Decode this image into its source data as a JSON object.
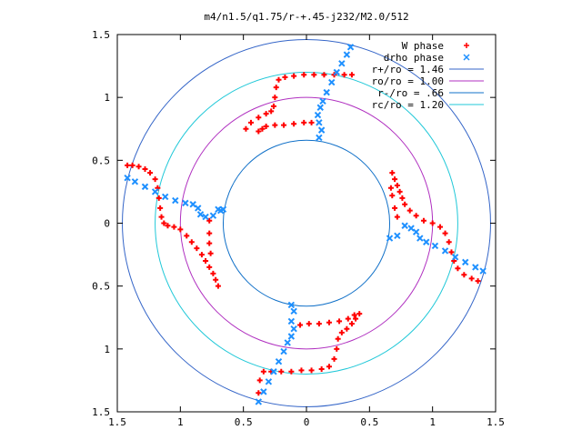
{
  "chart_data": {
    "type": "scatter",
    "title": "m4/n1.5/q1.75/r-+.45-j232/M2.0/512",
    "xlabel": "",
    "ylabel": "",
    "xlim": [
      -1.5,
      1.5
    ],
    "ylim": [
      -1.5,
      1.5
    ],
    "x_tick_values": [
      -1.5,
      -1,
      -0.5,
      0,
      0.5,
      1,
      1.5
    ],
    "x_tick_labels": [
      "1.5",
      "1",
      "0.5",
      "0",
      "0.5",
      "1",
      "1.5"
    ],
    "y_tick_values": [
      1.5,
      1,
      0.5,
      0,
      -0.5,
      -1,
      -1.5
    ],
    "y_tick_labels": [
      "1.5",
      "1",
      "0.5",
      "0",
      "0.5",
      "1",
      "1.5"
    ],
    "grid": false,
    "legend_position": "top-right",
    "circles": [
      {
        "name": "r+/ro = 1.46",
        "radius": 1.46,
        "color": "#3465c8",
        "marker": "line"
      },
      {
        "name": "ro/ro = 1.00",
        "radius": 1.0,
        "color": "#b030c0",
        "marker": "line"
      },
      {
        "name": "r-/ro = .66",
        "radius": 0.66,
        "color": "#1070c8",
        "marker": "line"
      },
      {
        "name": "rc/ro = 1.20",
        "radius": 1.2,
        "color": "#20c8d8",
        "marker": "line"
      }
    ],
    "series": [
      {
        "name": "W phase",
        "color": "#ff0000",
        "marker": "plus",
        "points": [
          [
            -0.7,
            -0.5
          ],
          [
            -0.72,
            -0.45
          ],
          [
            -0.74,
            -0.4
          ],
          [
            -0.77,
            -0.35
          ],
          [
            -0.8,
            -0.3
          ],
          [
            -0.83,
            -0.25
          ],
          [
            -0.87,
            -0.2
          ],
          [
            -0.91,
            -0.15
          ],
          [
            -0.95,
            -0.1
          ],
          [
            -1.0,
            -0.05
          ],
          [
            -1.05,
            -0.03
          ],
          [
            -1.1,
            -0.02
          ],
          [
            -1.13,
            0.0
          ],
          [
            -1.15,
            0.05
          ],
          [
            -1.16,
            0.12
          ],
          [
            -1.17,
            0.2
          ],
          [
            -1.18,
            0.28
          ],
          [
            -1.2,
            0.35
          ],
          [
            -1.24,
            0.4
          ],
          [
            -1.28,
            0.43
          ],
          [
            -1.33,
            0.45
          ],
          [
            -1.38,
            0.46
          ],
          [
            -1.42,
            0.46
          ],
          [
            -0.48,
            0.75
          ],
          [
            -0.44,
            0.8
          ],
          [
            -0.38,
            0.84
          ],
          [
            -0.32,
            0.87
          ],
          [
            -0.28,
            0.89
          ],
          [
            -0.26,
            0.93
          ],
          [
            -0.25,
            1.0
          ],
          [
            -0.24,
            1.08
          ],
          [
            -0.22,
            1.14
          ],
          [
            -0.17,
            1.16
          ],
          [
            -0.1,
            1.17
          ],
          [
            -0.02,
            1.18
          ],
          [
            0.06,
            1.18
          ],
          [
            0.14,
            1.18
          ],
          [
            0.22,
            1.18
          ],
          [
            0.3,
            1.18
          ],
          [
            0.36,
            1.18
          ],
          [
            -0.38,
            0.73
          ],
          [
            -0.35,
            0.75
          ],
          [
            -0.32,
            0.77
          ],
          [
            -0.25,
            0.78
          ],
          [
            -0.18,
            0.78
          ],
          [
            -0.1,
            0.79
          ],
          [
            -0.02,
            0.8
          ],
          [
            0.04,
            0.8
          ],
          [
            0.68,
            0.4
          ],
          [
            0.7,
            0.35
          ],
          [
            0.72,
            0.3
          ],
          [
            0.74,
            0.25
          ],
          [
            0.76,
            0.2
          ],
          [
            0.78,
            0.15
          ],
          [
            0.82,
            0.1
          ],
          [
            0.87,
            0.06
          ],
          [
            0.93,
            0.02
          ],
          [
            1.0,
            0.0
          ],
          [
            1.06,
            -0.03
          ],
          [
            1.1,
            -0.08
          ],
          [
            1.13,
            -0.15
          ],
          [
            1.15,
            -0.23
          ],
          [
            1.17,
            -0.3
          ],
          [
            1.2,
            -0.36
          ],
          [
            1.25,
            -0.41
          ],
          [
            1.31,
            -0.44
          ],
          [
            1.36,
            -0.46
          ],
          [
            0.67,
            0.28
          ],
          [
            0.68,
            0.22
          ],
          [
            0.7,
            0.12
          ],
          [
            0.72,
            0.05
          ],
          [
            -0.77,
            0.02
          ],
          [
            -0.77,
            -0.08
          ],
          [
            -0.77,
            -0.16
          ],
          [
            -0.76,
            -0.24
          ],
          [
            0.38,
            -0.73
          ],
          [
            0.33,
            -0.76
          ],
          [
            0.26,
            -0.78
          ],
          [
            0.18,
            -0.79
          ],
          [
            0.1,
            -0.8
          ],
          [
            0.02,
            -0.8
          ],
          [
            -0.05,
            -0.81
          ],
          [
            0.42,
            -0.72
          ],
          [
            0.39,
            -0.76
          ],
          [
            0.36,
            -0.8
          ],
          [
            0.32,
            -0.84
          ],
          [
            0.28,
            -0.87
          ],
          [
            0.25,
            -0.92
          ],
          [
            0.24,
            -1.0
          ],
          [
            0.22,
            -1.08
          ],
          [
            0.18,
            -1.14
          ],
          [
            0.12,
            -1.16
          ],
          [
            0.04,
            -1.17
          ],
          [
            -0.04,
            -1.17
          ],
          [
            -0.12,
            -1.18
          ],
          [
            -0.2,
            -1.18
          ],
          [
            -0.28,
            -1.18
          ],
          [
            -0.34,
            -1.18
          ],
          [
            -0.37,
            -1.25
          ],
          [
            -0.38,
            -1.35
          ]
        ]
      },
      {
        "name": "drho phase",
        "color": "#1e90ff",
        "marker": "cross",
        "points": [
          [
            -1.42,
            0.36
          ],
          [
            -1.36,
            0.33
          ],
          [
            -1.28,
            0.29
          ],
          [
            -1.2,
            0.25
          ],
          [
            -1.12,
            0.21
          ],
          [
            -1.04,
            0.18
          ],
          [
            -0.96,
            0.16
          ],
          [
            -0.9,
            0.15
          ],
          [
            -0.86,
            0.12
          ],
          [
            -0.84,
            0.07
          ],
          [
            -0.8,
            0.05
          ],
          [
            -0.74,
            0.06
          ],
          [
            -0.68,
            0.1
          ],
          [
            -0.66,
            0.11
          ],
          [
            -0.7,
            0.11
          ],
          [
            0.35,
            1.4
          ],
          [
            0.32,
            1.34
          ],
          [
            0.28,
            1.27
          ],
          [
            0.24,
            1.2
          ],
          [
            0.2,
            1.12
          ],
          [
            0.16,
            1.04
          ],
          [
            0.13,
            0.97
          ],
          [
            0.11,
            0.92
          ],
          [
            0.09,
            0.86
          ],
          [
            0.1,
            0.8
          ],
          [
            0.12,
            0.74
          ],
          [
            0.1,
            0.68
          ],
          [
            1.4,
            -0.38
          ],
          [
            1.34,
            -0.35
          ],
          [
            1.26,
            -0.31
          ],
          [
            1.18,
            -0.27
          ],
          [
            1.1,
            -0.22
          ],
          [
            1.02,
            -0.18
          ],
          [
            0.95,
            -0.15
          ],
          [
            0.9,
            -0.12
          ],
          [
            0.87,
            -0.07
          ],
          [
            0.83,
            -0.04
          ],
          [
            0.78,
            -0.02
          ],
          [
            0.72,
            -0.1
          ],
          [
            0.66,
            -0.12
          ],
          [
            -0.38,
            -1.42
          ],
          [
            -0.34,
            -1.34
          ],
          [
            -0.3,
            -1.26
          ],
          [
            -0.26,
            -1.18
          ],
          [
            -0.22,
            -1.1
          ],
          [
            -0.18,
            -1.02
          ],
          [
            -0.15,
            -0.95
          ],
          [
            -0.12,
            -0.9
          ],
          [
            -0.1,
            -0.84
          ],
          [
            -0.12,
            -0.78
          ],
          [
            -0.1,
            -0.7
          ],
          [
            -0.12,
            -0.65
          ]
        ]
      }
    ]
  }
}
